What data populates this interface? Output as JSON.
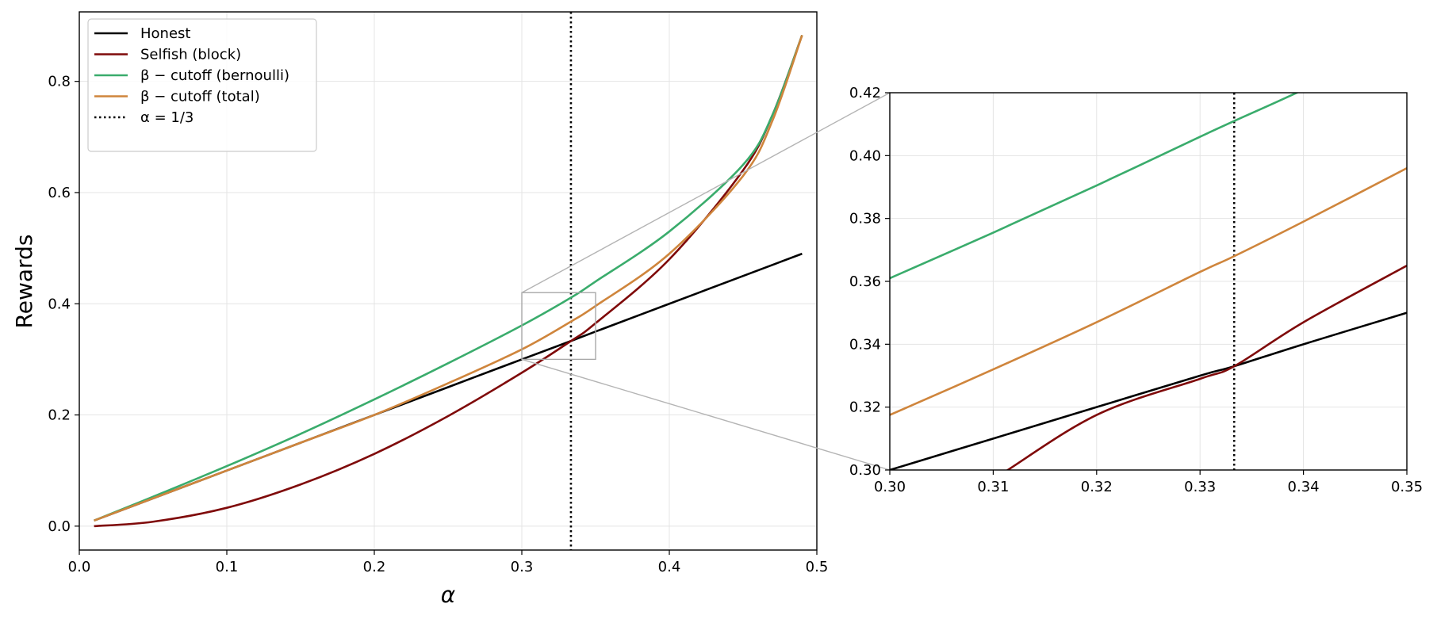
{
  "chart_data": [
    {
      "type": "line",
      "xlabel": "α",
      "ylabel": "Rewards",
      "xlim": [
        0.0,
        0.5
      ],
      "ylim": [
        -0.043,
        0.925
      ],
      "xticks": [
        0.0,
        0.1,
        0.2,
        0.3,
        0.4,
        0.5
      ],
      "xtick_labels": [
        "0.0",
        "0.1",
        "0.2",
        "0.3",
        "0.4",
        "0.5"
      ],
      "yticks": [
        0.0,
        0.2,
        0.4,
        0.6,
        0.8
      ],
      "ytick_labels": [
        "0.0",
        "0.2",
        "0.4",
        "0.6",
        "0.8"
      ],
      "grid": true,
      "legend_position": "top-left",
      "vline": {
        "x": 0.3333,
        "label": "α = 1/3",
        "color": "#000000",
        "style": "dotted"
      },
      "inset_indicator": {
        "x": [
          0.3,
          0.35
        ],
        "y": [
          0.3,
          0.42
        ]
      },
      "x": [
        0.01,
        0.05,
        0.1,
        0.15,
        0.2,
        0.25,
        0.3,
        0.3333,
        0.35,
        0.4,
        0.45,
        0.47,
        0.49
      ],
      "series": [
        {
          "name": "Honest",
          "color": "#000000",
          "values": [
            0.01,
            0.05,
            0.1,
            0.15,
            0.2,
            0.25,
            0.3,
            0.333,
            0.35,
            0.4,
            0.45,
            0.47,
            0.49
          ]
        },
        {
          "name": "Selfish (block)",
          "color": "#7f0a0a",
          "values": [
            0.0,
            0.008,
            0.033,
            0.075,
            0.13,
            0.198,
            0.276,
            0.333,
            0.365,
            0.48,
            0.64,
            0.74,
            0.883
          ]
        },
        {
          "name": "β − cutoff (bernoulli)",
          "color": "#3aac6c",
          "values": [
            0.01,
            0.053,
            0.108,
            0.166,
            0.228,
            0.293,
            0.361,
            0.411,
            0.44,
            0.53,
            0.65,
            0.74,
            0.883
          ]
        },
        {
          "name": "β − cutoff (total)",
          "color": "#cf853c",
          "values": [
            0.01,
            0.05,
            0.1,
            0.15,
            0.2,
            0.257,
            0.318,
            0.368,
            0.396,
            0.49,
            0.63,
            0.73,
            0.883
          ]
        }
      ]
    },
    {
      "type": "line",
      "xlim": [
        0.3,
        0.35
      ],
      "ylim": [
        0.3,
        0.42
      ],
      "xticks": [
        0.3,
        0.31,
        0.32,
        0.33,
        0.34,
        0.35
      ],
      "xtick_labels": [
        "0.30",
        "0.31",
        "0.32",
        "0.33",
        "0.34",
        "0.35"
      ],
      "yticks": [
        0.3,
        0.32,
        0.34,
        0.36,
        0.38,
        0.4,
        0.42
      ],
      "ytick_labels": [
        "0.30",
        "0.32",
        "0.34",
        "0.36",
        "0.38",
        "0.40",
        "0.42"
      ],
      "grid": true,
      "vline": {
        "x": 0.3333,
        "color": "#000000",
        "style": "dotted"
      },
      "x": [
        0.3,
        0.31,
        0.32,
        0.33,
        0.3333,
        0.34,
        0.35
      ],
      "series": [
        {
          "name": "Honest",
          "color": "#000000",
          "values": [
            0.3,
            0.31,
            0.32,
            0.33,
            0.333,
            0.34,
            0.35
          ]
        },
        {
          "name": "Selfish (block)",
          "color": "#7f0a0a",
          "values": [
            0.276,
            0.297,
            0.3175,
            0.329,
            0.333,
            0.347,
            0.365
          ]
        },
        {
          "name": "β − cutoff (bernoulli)",
          "color": "#3aac6c",
          "values": [
            0.361,
            0.3755,
            0.3905,
            0.406,
            0.411,
            0.421,
            0.437
          ]
        },
        {
          "name": "β − cutoff (total)",
          "color": "#cf853c",
          "values": [
            0.3175,
            0.332,
            0.347,
            0.363,
            0.368,
            0.379,
            0.396
          ]
        }
      ]
    }
  ]
}
